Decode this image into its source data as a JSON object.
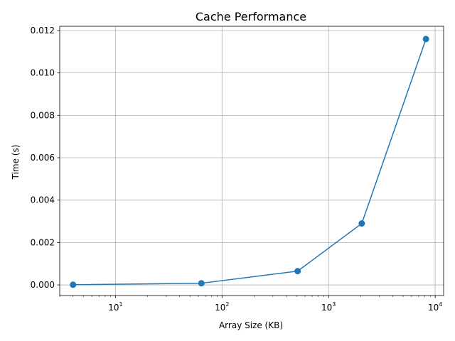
{
  "chart_data": {
    "type": "line",
    "title": "Cache Performance",
    "xlabel": "Array Size (KB)",
    "ylabel": "Time (s)",
    "x_scale": "log",
    "xlim": [
      3,
      12000
    ],
    "ylim": [
      -0.0005,
      0.0122
    ],
    "grid": true,
    "legend": "none",
    "color": "#1f77b4",
    "x": [
      4,
      64,
      512,
      2048,
      8192
    ],
    "y": [
      1e-05,
      8e-05,
      0.00065,
      0.0029,
      0.0116
    ],
    "x_ticks": [
      {
        "value": 10,
        "base": "10",
        "exp": "1"
      },
      {
        "value": 100,
        "base": "10",
        "exp": "2"
      },
      {
        "value": 1000,
        "base": "10",
        "exp": "3"
      },
      {
        "value": 10000,
        "base": "10",
        "exp": "4"
      }
    ],
    "y_ticks": [
      {
        "value": 0.0,
        "label": "0.000"
      },
      {
        "value": 0.002,
        "label": "0.002"
      },
      {
        "value": 0.004,
        "label": "0.004"
      },
      {
        "value": 0.006,
        "label": "0.006"
      },
      {
        "value": 0.008,
        "label": "0.008"
      },
      {
        "value": 0.01,
        "label": "0.010"
      },
      {
        "value": 0.012,
        "label": "0.012"
      }
    ]
  }
}
